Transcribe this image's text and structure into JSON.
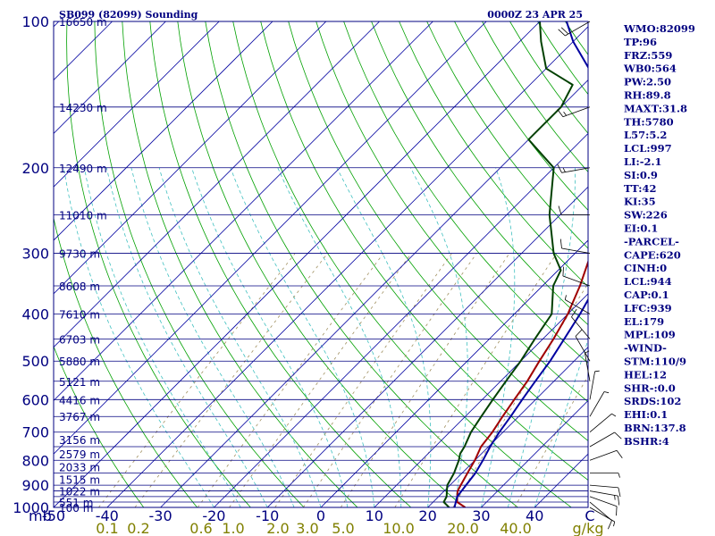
{
  "header": {
    "station": "SB099 (82099) Sounding",
    "valid": "0000Z 23 APR 25"
  },
  "chart_data": {
    "type": "line",
    "title": "SB099 (82099) Sounding",
    "xlabel": "C",
    "ylabel": "mb",
    "xlim": [
      -50,
      50
    ],
    "ylim": [
      1000,
      100
    ],
    "x_ticks": [
      -50,
      -40,
      -30,
      -20,
      -10,
      0,
      10,
      20,
      30,
      40
    ],
    "x_tick_labels": [
      "-50",
      "-40",
      "-30",
      "-20",
      "-10",
      "0",
      "10",
      "20",
      "30",
      "40"
    ],
    "pressure_ticks": [
      1000,
      900,
      800,
      700,
      600,
      500,
      400,
      300,
      200,
      100
    ],
    "pressure_tick_labels": [
      "1000",
      "900",
      "800",
      "700",
      "600",
      "500",
      "400",
      "300",
      "200",
      "100"
    ],
    "mixing_ratio_labels": [
      "0.1",
      "0.2",
      "0.6",
      "1.0",
      "2.0",
      "3.0",
      "5.0",
      "10.0",
      "20.0",
      "40.0",
      "g/kg"
    ],
    "height_labels": [
      {
        "p": 1000,
        "text": "100 m"
      },
      {
        "p": 975,
        "text": "551 m"
      },
      {
        "p": 925,
        "text": "1022 m"
      },
      {
        "p": 875,
        "text": "1515 m"
      },
      {
        "p": 825,
        "text": "2033 m"
      },
      {
        "p": 775,
        "text": "2579 m"
      },
      {
        "p": 725,
        "text": "3156 m"
      },
      {
        "p": 650,
        "text": "3767 m"
      },
      {
        "p": 600,
        "text": "4416 m"
      },
      {
        "p": 550,
        "text": "5121 m"
      },
      {
        "p": 500,
        "text": "5880 m"
      },
      {
        "p": 450,
        "text": "6703 m"
      },
      {
        "p": 400,
        "text": "7610 m"
      },
      {
        "p": 350,
        "text": "8608 m"
      },
      {
        "p": 300,
        "text": "9730 m"
      },
      {
        "p": 250,
        "text": "11010 m"
      },
      {
        "p": 200,
        "text": "12490 m"
      },
      {
        "p": 150,
        "text": "14230 m"
      },
      {
        "p": 100,
        "text": "16650 m"
      }
    ],
    "series": [
      {
        "name": "Temperature",
        "color": "#a00000",
        "points": [
          [
            1000,
            27
          ],
          [
            975,
            24.5
          ],
          [
            950,
            23.5
          ],
          [
            925,
            22.5
          ],
          [
            900,
            22
          ],
          [
            850,
            21
          ],
          [
            800,
            20
          ],
          [
            750,
            18.6
          ],
          [
            700,
            18
          ],
          [
            650,
            17
          ],
          [
            600,
            16
          ],
          [
            550,
            15
          ],
          [
            500,
            13.5
          ],
          [
            450,
            12
          ],
          [
            400,
            10
          ],
          [
            350,
            7
          ],
          [
            300,
            3
          ],
          [
            250,
            -2
          ],
          [
            200,
            -8
          ],
          [
            150,
            -17
          ],
          [
            125,
            -26
          ],
          [
            110,
            -34
          ],
          [
            100,
            -40
          ]
        ]
      },
      {
        "name": "Dewpoint",
        "color": "#004000",
        "points": [
          [
            1000,
            24
          ],
          [
            975,
            22
          ],
          [
            950,
            21.5
          ],
          [
            925,
            20.5
          ],
          [
            900,
            19.5
          ],
          [
            850,
            18.5
          ],
          [
            800,
            17
          ],
          [
            775,
            16
          ],
          [
            750,
            15.5
          ],
          [
            700,
            14
          ],
          [
            650,
            13
          ],
          [
            600,
            12
          ],
          [
            550,
            11
          ],
          [
            500,
            10
          ],
          [
            450,
            8.5
          ],
          [
            400,
            7
          ],
          [
            350,
            2
          ],
          [
            325,
            0.5
          ],
          [
            300,
            -4
          ],
          [
            250,
            -12
          ],
          [
            200,
            -20
          ],
          [
            175,
            -30
          ],
          [
            150,
            -30
          ],
          [
            135,
            -32
          ],
          [
            125,
            -40
          ],
          [
            110,
            -46
          ],
          [
            100,
            -50
          ]
        ]
      },
      {
        "name": "Parcel",
        "color": "#0000a0",
        "points": [
          [
            1000,
            25
          ],
          [
            950,
            23.5
          ],
          [
            900,
            23
          ],
          [
            850,
            22.5
          ],
          [
            800,
            21.5
          ],
          [
            750,
            20.3
          ],
          [
            700,
            19.3
          ],
          [
            650,
            18.5
          ],
          [
            600,
            17.5
          ],
          [
            550,
            16.5
          ],
          [
            500,
            15.5
          ],
          [
            450,
            14
          ],
          [
            400,
            12.3
          ],
          [
            350,
            10
          ],
          [
            300,
            7
          ],
          [
            250,
            2
          ],
          [
            200,
            -6
          ],
          [
            150,
            -20
          ],
          [
            125,
            -32
          ],
          [
            110,
            -40
          ],
          [
            100,
            -45
          ]
        ]
      }
    ],
    "wind_barbs_kt": [
      {
        "p": 1000,
        "dir": 120,
        "spd": 5
      },
      {
        "p": 975,
        "dir": 130,
        "spd": 10
      },
      {
        "p": 950,
        "dir": 110,
        "spd": 10
      },
      {
        "p": 925,
        "dir": 100,
        "spd": 15
      },
      {
        "p": 900,
        "dir": 95,
        "spd": 10
      },
      {
        "p": 850,
        "dir": 90,
        "spd": 5
      },
      {
        "p": 800,
        "dir": 70,
        "spd": 10
      },
      {
        "p": 750,
        "dir": 60,
        "spd": 10
      },
      {
        "p": 700,
        "dir": 50,
        "spd": 5
      },
      {
        "p": 650,
        "dir": 30,
        "spd": 5
      },
      {
        "p": 600,
        "dir": 10,
        "spd": 5
      },
      {
        "p": 550,
        "dir": 350,
        "spd": 5
      },
      {
        "p": 500,
        "dir": 330,
        "spd": 10
      },
      {
        "p": 450,
        "dir": 320,
        "spd": 10
      },
      {
        "p": 400,
        "dir": 300,
        "spd": 5
      },
      {
        "p": 350,
        "dir": 290,
        "spd": 10
      },
      {
        "p": 300,
        "dir": 280,
        "spd": 10
      },
      {
        "p": 250,
        "dir": 270,
        "spd": 10
      },
      {
        "p": 200,
        "dir": 260,
        "spd": 15
      },
      {
        "p": 150,
        "dir": 250,
        "spd": 15
      },
      {
        "p": 100,
        "dir": 240,
        "spd": 20
      }
    ],
    "grid": true,
    "legend": "none",
    "colors": {
      "frame": "#000080",
      "isobar": "#000080",
      "isotherm": "#0000a0",
      "dry_adiabat": "#00a000",
      "moist_adiabat": "#40c0c0",
      "mixing_ratio": "#a09060",
      "mixing_ratio_label": "#808000",
      "index_text": "#000080"
    }
  },
  "indices": [
    "WMO:82099",
    "TP:96",
    "FRZ:559",
    "WB0:564",
    "PW:2.50",
    "RH:89.8",
    "MAXT:31.8",
    "TH:5780",
    "L57:5.2",
    "LCL:997",
    "LI:-2.1",
    "SI:0.9",
    "TT:42",
    "KI:35",
    "SW:226",
    "EI:0.1",
    "-PARCEL-",
    "CAPE:620",
    "CINH:0",
    "LCL:944",
    "CAP:0.1",
    "LFC:939",
    "EL:179",
    "MPL:109",
    "-WIND-",
    "STM:110/9",
    "HEL:12",
    "SHR-:0.0",
    "SRDS:102",
    "EHI:0.1",
    "BRN:137.8",
    "BSHR:4"
  ]
}
